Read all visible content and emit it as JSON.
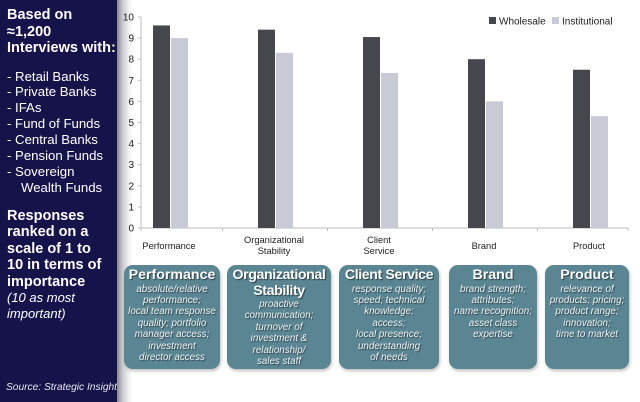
{
  "sidebar": {
    "intro": [
      "Based on",
      "≈1,200",
      "Interviews with:"
    ],
    "respondents": [
      "- Retail Banks",
      "- Private Banks",
      "- IFAs",
      "- Fund of Funds",
      "- Central Banks",
      "- Pension Funds",
      "- Sovereign",
      "Wealth Funds"
    ],
    "responses": [
      "Responses",
      "ranked on a",
      "scale of 1 to",
      "10 in terms of",
      "importance"
    ],
    "note": [
      "(10 as most",
      "important)"
    ],
    "source": "Source: Strategic Insight"
  },
  "colors": {
    "sidebar_bg": "#16134b",
    "wholesale": "#45474d",
    "institutional": "#c8cad6",
    "box_bg": "#5a8592"
  },
  "chart_data": {
    "type": "bar",
    "title": "",
    "xlabel": "",
    "ylabel": "",
    "ylim": [
      0,
      10
    ],
    "yticks": [
      0,
      1,
      2,
      3,
      4,
      5,
      6,
      7,
      8,
      9,
      10
    ],
    "grid": false,
    "legend_position": "top-right",
    "categories": [
      "Performance",
      "Organizational Stability",
      "Client Service",
      "Brand",
      "Product"
    ],
    "category_label_lines": [
      [
        "Performance"
      ],
      [
        "Organizational",
        "Stability"
      ],
      [
        "Client",
        "Service"
      ],
      [
        "Brand"
      ],
      [
        "Product"
      ]
    ],
    "series": [
      {
        "name": "Wholesale",
        "values": [
          9.6,
          9.4,
          9.05,
          8.0,
          7.5
        ]
      },
      {
        "name": "Institutional",
        "values": [
          9.0,
          8.3,
          7.35,
          6.0,
          5.3
        ]
      }
    ]
  },
  "descriptions": [
    {
      "title": [
        "Performance"
      ],
      "lines": [
        "absolute/relative",
        "performance;",
        "local team response",
        "quality; portfolio",
        "manager access;",
        "investment",
        "director access"
      ]
    },
    {
      "title": [
        "Organizational",
        "Stability"
      ],
      "lines": [
        "proactive",
        "communication;",
        "turnover of",
        "investment &",
        "relationship/",
        "sales staff"
      ]
    },
    {
      "title": [
        "Client Service"
      ],
      "lines": [
        "response quality;",
        "speed; technical",
        "knowledge;",
        "access;",
        "local presence;",
        "understanding",
        "of needs"
      ]
    },
    {
      "title": [
        "Brand"
      ],
      "lines": [
        "brand strength;",
        "attributes;",
        "name recognition;",
        "asset class",
        "expertise"
      ]
    },
    {
      "title": [
        "Product"
      ],
      "lines": [
        "relevance of",
        "products; pricing;",
        "product range;",
        "innovation;",
        "time to market"
      ]
    }
  ]
}
